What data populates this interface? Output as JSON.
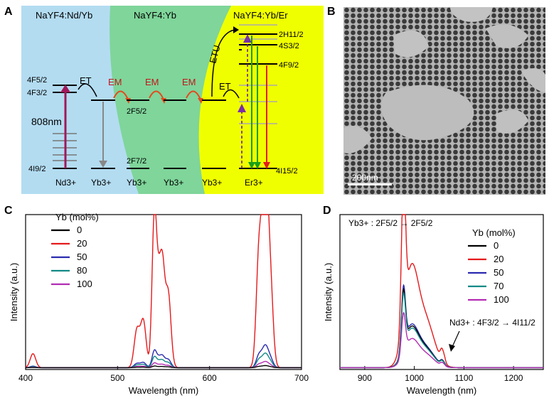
{
  "panels": {
    "A": {
      "label": "A",
      "regions": [
        "NaYF4:Nd/Yb",
        "NaYF4:Yb",
        "NaYF4:Yb/Er"
      ],
      "ions": [
        "Nd3+",
        "Yb3+",
        "Yb3+",
        "Yb3+",
        "Yb3+",
        "Er3+"
      ],
      "levels": {
        "nd_upper": "4F5/2",
        "nd_lower": "4F3/2",
        "nd_ground": "4I9/2",
        "yb_excited": "2F5/2",
        "yb_ground": "2F7/2",
        "er_h": "2H11/2",
        "er_s": "4S3/2",
        "er_f": "4F9/2",
        "er_ground": "4I15/2"
      },
      "excitation": "808nm",
      "processes": {
        "et": "ET",
        "em": "EM",
        "etu": "ETU"
      }
    },
    "B": {
      "label": "B",
      "scale_bar": "200nm"
    },
    "C": {
      "label": "C"
    },
    "D": {
      "label": "D",
      "annot_yb": "Yb3+ : 2F5/2 → 2F5/2",
      "annot_nd": "Nd3+ : 4F3/2 → 4I11/2"
    }
  },
  "chart_data": [
    {
      "panel": "C",
      "type": "line",
      "xlabel": "Wavelength (nm)",
      "ylabel": "Intensity (a.u.)",
      "xlim": [
        400,
        700
      ],
      "ylim": [
        0,
        100
      ],
      "xticks": [
        400,
        500,
        600,
        700
      ],
      "legend_title": "Yb (mol%)",
      "legend_position": "top-left",
      "series": [
        {
          "name": "0",
          "color": "#000000",
          "scale": 0.01
        },
        {
          "name": "20",
          "color": "#e41a1c",
          "scale": 1.0
        },
        {
          "name": "50",
          "color": "#2a2ab0",
          "scale": 0.11
        },
        {
          "name": "80",
          "color": "#138a86",
          "scale": 0.07
        },
        {
          "name": "100",
          "color": "#b22cb2",
          "scale": 0.03
        }
      ],
      "peaks": [
        {
          "center": 408,
          "height": 9,
          "width": 3
        },
        {
          "center": 521,
          "height": 24,
          "width": 3
        },
        {
          "center": 528,
          "height": 30,
          "width": 3
        },
        {
          "center": 540,
          "height": 98,
          "width": 2.5
        },
        {
          "center": 545,
          "height": 45,
          "width": 2.5
        },
        {
          "center": 549,
          "height": 55,
          "width": 2.5
        },
        {
          "center": 555,
          "height": 48,
          "width": 3
        },
        {
          "center": 654,
          "height": 78,
          "width": 3
        },
        {
          "center": 659,
          "height": 70,
          "width": 2.5
        },
        {
          "center": 662,
          "height": 70,
          "width": 2.5
        },
        {
          "center": 666,
          "height": 55,
          "width": 3
        }
      ]
    },
    {
      "panel": "D",
      "type": "line",
      "xlabel": "Wavelength (nm)",
      "ylabel": "Intensity (a.u.)",
      "xlim": [
        850,
        1260
      ],
      "ylim": [
        0,
        100
      ],
      "xticks": [
        900,
        1000,
        1100,
        1200
      ],
      "legend_title": "Yb (mol%)",
      "legend_position": "top-right",
      "series": [
        {
          "name": "0",
          "color": "#000000",
          "scale": 0.4
        },
        {
          "name": "20",
          "color": "#e41a1c",
          "scale": 1.0
        },
        {
          "name": "50",
          "color": "#2a2ab0",
          "scale": 0.42
        },
        {
          "name": "70",
          "color": "#138a86",
          "scale": 0.38
        },
        {
          "name": "100",
          "color": "#b22cb2",
          "scale": 0.28
        }
      ],
      "peaks": [
        {
          "center": 978,
          "height": 92,
          "width": 4
        },
        {
          "center": 993,
          "height": 58,
          "width": 14
        },
        {
          "center": 1022,
          "height": 30,
          "width": 18
        },
        {
          "center": 1055,
          "height": 6,
          "width": 3
        },
        {
          "center": 1060,
          "height": 4,
          "width": 3
        }
      ]
    }
  ]
}
